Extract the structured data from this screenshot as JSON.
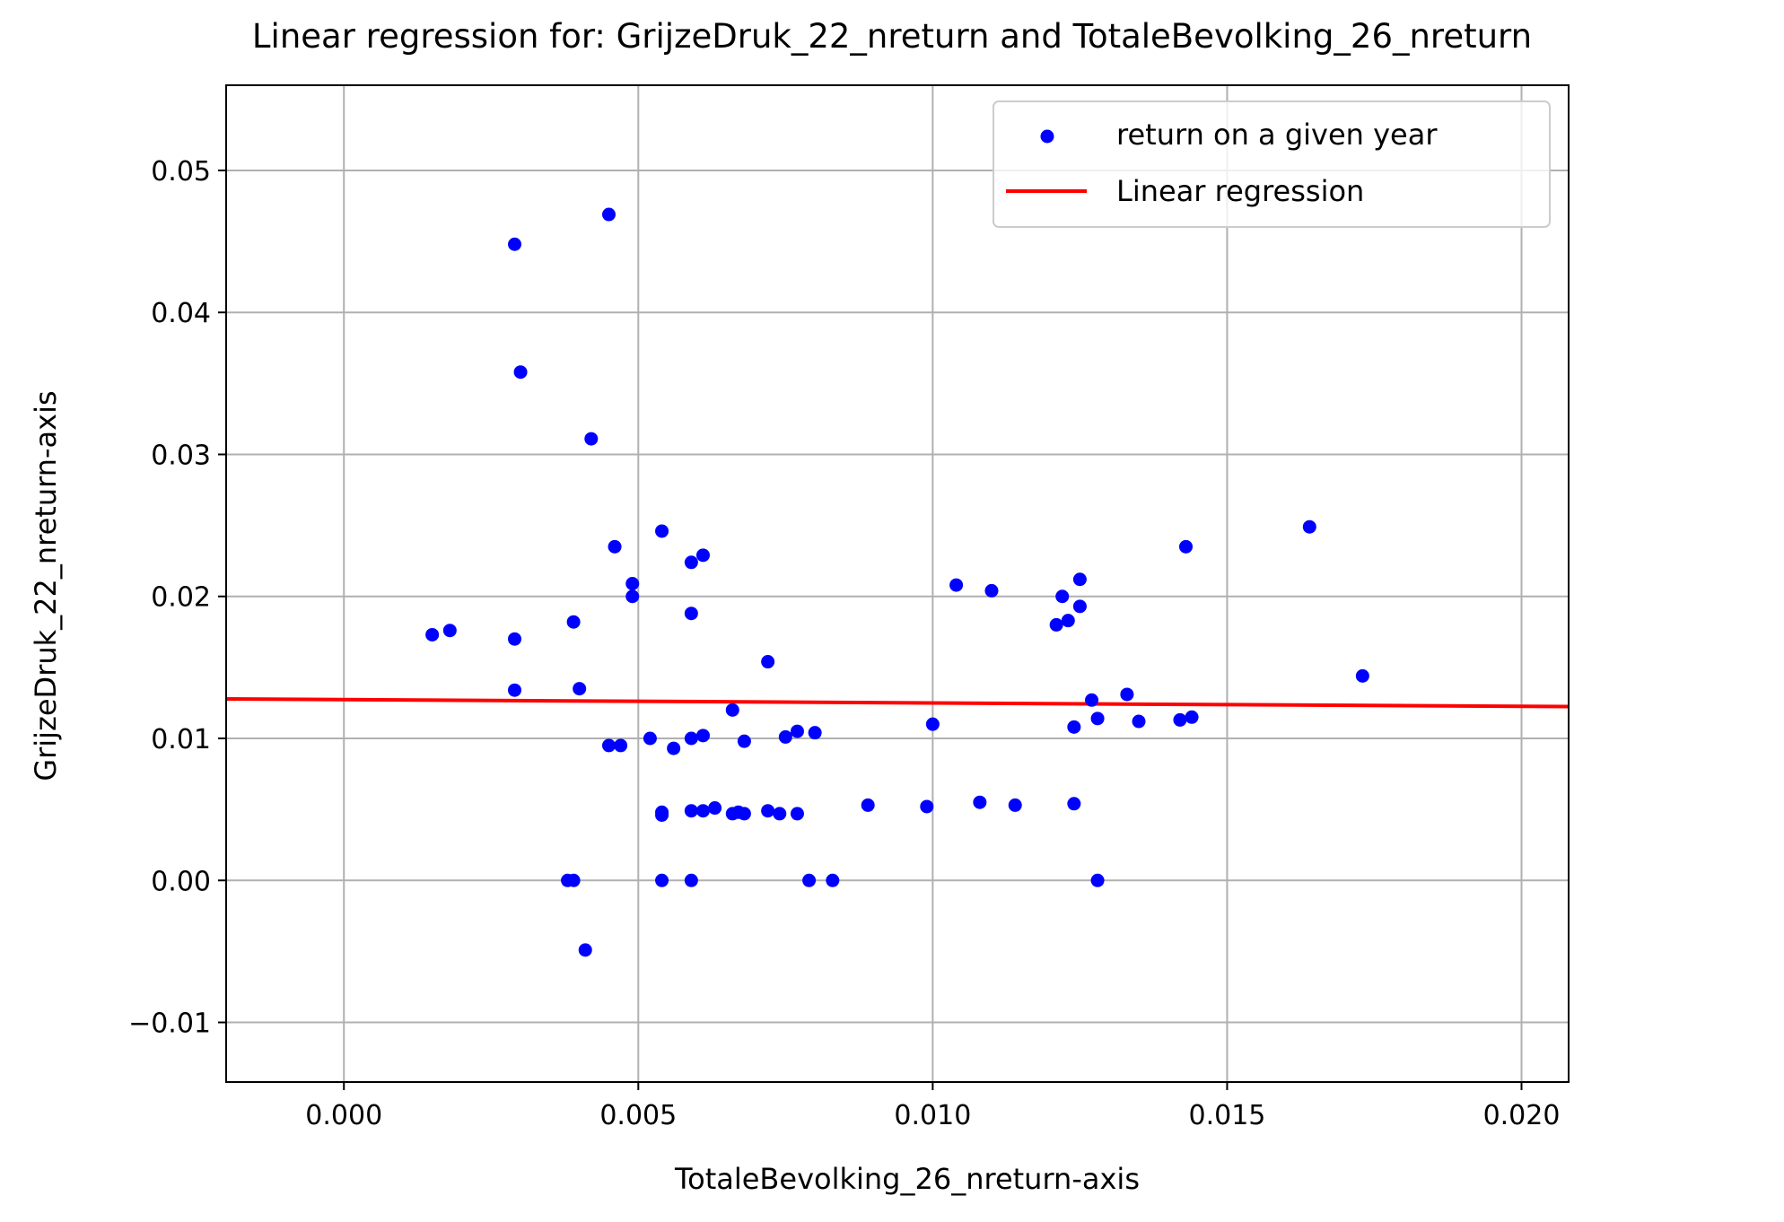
{
  "chart_data": {
    "type": "scatter",
    "title": "Linear regression for: GrijzeDruk_22_nreturn and TotaleBevolking_26_nreturn",
    "xlabel": "TotaleBevolking_26_nreturn-axis",
    "ylabel": "GrijzeDruk_22_nreturn-axis",
    "xlim": [
      -0.002,
      0.0208
    ],
    "ylim": [
      -0.0142,
      0.056
    ],
    "xticks": [
      0.0,
      0.005,
      0.01,
      0.015,
      0.02
    ],
    "xtick_labels": [
      "0.000",
      "0.005",
      "0.010",
      "0.015",
      "0.020"
    ],
    "yticks": [
      -0.01,
      0.0,
      0.01,
      0.02,
      0.03,
      0.04,
      0.05
    ],
    "ytick_labels": [
      "−0.01",
      "0.00",
      "0.01",
      "0.02",
      "0.03",
      "0.04",
      "0.05"
    ],
    "grid": true,
    "legend": {
      "position": "top-right",
      "entries": [
        {
          "label": "return on a given year",
          "kind": "marker",
          "color": "#0000ff"
        },
        {
          "label": "Linear regression",
          "kind": "line",
          "color": "#ff0000"
        }
      ]
    },
    "series": [
      {
        "name": "return on a given year",
        "kind": "scatter",
        "color": "#0000ff",
        "points": [
          [
            0.0029,
            0.0448
          ],
          [
            0.0045,
            0.0469
          ],
          [
            0.003,
            0.0358
          ],
          [
            0.0042,
            0.0311
          ],
          [
            0.0054,
            0.0246
          ],
          [
            0.0046,
            0.0235
          ],
          [
            0.0059,
            0.0224
          ],
          [
            0.0061,
            0.0229
          ],
          [
            0.0049,
            0.0209
          ],
          [
            0.0049,
            0.02
          ],
          [
            0.0015,
            0.0173
          ],
          [
            0.0018,
            0.0176
          ],
          [
            0.0029,
            0.017
          ],
          [
            0.0039,
            0.0182
          ],
          [
            0.0059,
            0.0188
          ],
          [
            0.0029,
            0.0134
          ],
          [
            0.004,
            0.0135
          ],
          [
            0.0072,
            0.0154
          ],
          [
            0.0066,
            0.012
          ],
          [
            0.0052,
            0.01
          ],
          [
            0.0045,
            0.0095
          ],
          [
            0.0047,
            0.0095
          ],
          [
            0.0056,
            0.0093
          ],
          [
            0.0059,
            0.01
          ],
          [
            0.0061,
            0.0102
          ],
          [
            0.0068,
            0.0098
          ],
          [
            0.0075,
            0.0101
          ],
          [
            0.0077,
            0.0105
          ],
          [
            0.008,
            0.0104
          ],
          [
            0.0054,
            0.0048
          ],
          [
            0.0054,
            0.0046
          ],
          [
            0.0059,
            0.0049
          ],
          [
            0.0061,
            0.0049
          ],
          [
            0.0063,
            0.0051
          ],
          [
            0.0066,
            0.0047
          ],
          [
            0.0067,
            0.0048
          ],
          [
            0.0068,
            0.0047
          ],
          [
            0.0072,
            0.0049
          ],
          [
            0.0074,
            0.0047
          ],
          [
            0.0077,
            0.0047
          ],
          [
            0.0089,
            0.0053
          ],
          [
            0.0099,
            0.0052
          ],
          [
            0.0108,
            0.0055
          ],
          [
            0.0114,
            0.0053
          ],
          [
            0.0124,
            0.0054
          ],
          [
            0.01,
            0.011
          ],
          [
            0.0104,
            0.0208
          ],
          [
            0.011,
            0.0204
          ],
          [
            0.0121,
            0.018
          ],
          [
            0.0122,
            0.02
          ],
          [
            0.0123,
            0.0183
          ],
          [
            0.0125,
            0.0193
          ],
          [
            0.0125,
            0.0212
          ],
          [
            0.0127,
            0.0127
          ],
          [
            0.0124,
            0.0108
          ],
          [
            0.0128,
            0.0114
          ],
          [
            0.0133,
            0.0131
          ],
          [
            0.0135,
            0.0112
          ],
          [
            0.0142,
            0.0113
          ],
          [
            0.0144,
            0.0115
          ],
          [
            0.0143,
            0.0235
          ],
          [
            0.0164,
            0.0249
          ],
          [
            0.0173,
            0.0144
          ],
          [
            0.0038,
            0.0
          ],
          [
            0.0039,
            0.0
          ],
          [
            0.0054,
            0.0
          ],
          [
            0.0059,
            0.0
          ],
          [
            0.0079,
            0.0
          ],
          [
            0.0083,
            0.0
          ],
          [
            0.0128,
            0.0
          ],
          [
            0.0041,
            -0.0049
          ]
        ]
      },
      {
        "name": "Linear regression",
        "kind": "line",
        "color": "#ff0000",
        "points": [
          [
            -0.002,
            0.01278
          ],
          [
            0.0208,
            0.01224
          ]
        ]
      }
    ]
  }
}
